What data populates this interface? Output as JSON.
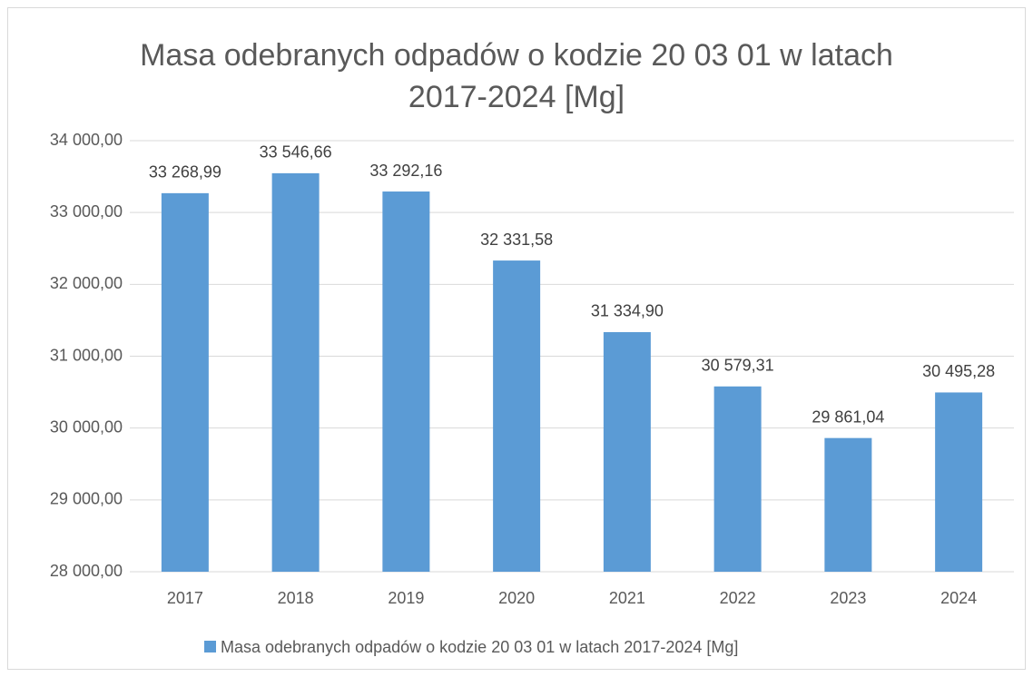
{
  "chart_data": {
    "type": "bar",
    "title": "Masa odebranych odpadów o kodzie 20 03 01 w latach 2017-2024 [Mg]",
    "categories": [
      "2017",
      "2018",
      "2019",
      "2020",
      "2021",
      "2022",
      "2023",
      "2024"
    ],
    "series": [
      {
        "name": "Masa odebranych odpadów o kodzie 20 03 01 w latach 2017-2024 [Mg]",
        "color": "#5b9bd5",
        "values": [
          33268.99,
          33546.66,
          33292.16,
          32331.58,
          31334.9,
          30579.31,
          29861.04,
          30495.28
        ],
        "value_labels": [
          "33 268,99",
          "33 546,66",
          "33 292,16",
          "32 331,58",
          "31 334,90",
          "30 579,31",
          "29 861,04",
          "30 495,28"
        ]
      }
    ],
    "ylim": [
      28000,
      34000
    ],
    "yticks": [
      {
        "value": 28000,
        "label": "28 000,00"
      },
      {
        "value": 29000,
        "label": "29 000,00"
      },
      {
        "value": 30000,
        "label": "30 000,00"
      },
      {
        "value": 31000,
        "label": "31 000,00"
      },
      {
        "value": 32000,
        "label": "32 000,00"
      },
      {
        "value": 33000,
        "label": "33 000,00"
      },
      {
        "value": 34000,
        "label": "34 000,00"
      }
    ],
    "grid": true,
    "legend": "bottom"
  }
}
